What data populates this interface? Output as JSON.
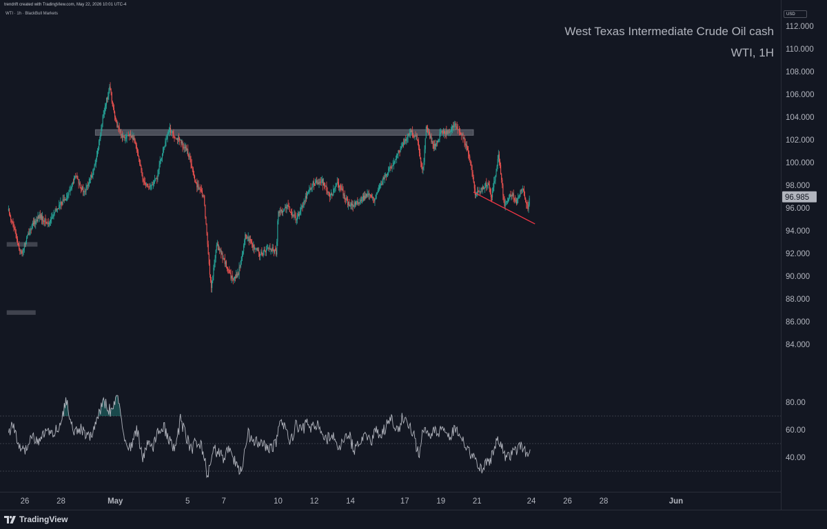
{
  "header": {
    "created_by": "trendrift created with TradingView.com, May 22, 2026 10:01 UTC-4",
    "symbol_line": "WTI · 1h · BlackBull Markets"
  },
  "overlay": {
    "title": "West Texas Intermediate Crude Oil cash",
    "subtitle": "WTI, 1H"
  },
  "price_scale": {
    "currency": "USD",
    "current_price": "96.985",
    "current_price_color": "#b2b5be"
  },
  "footer": {
    "brand": "TradingView",
    "logo_icon": "tradingview-logo-icon"
  },
  "colors": {
    "background": "#131722",
    "up_candle": "#26a69a",
    "down_candle": "#ef5350",
    "trendline": "#f23645",
    "zone": "#787b86",
    "rsi_line": "#b2b5be"
  },
  "chart_data": [
    {
      "type": "candlestick",
      "title": "",
      "y_ticks": [
        "84.000",
        "86.000",
        "88.000",
        "90.000",
        "92.000",
        "94.000",
        "96.000",
        "98.000",
        "100.000",
        "102.000",
        "104.000",
        "106.000",
        "108.000",
        "110.000",
        "112.000"
      ],
      "ylim": [
        82.3,
        113.4
      ],
      "x_ticks": [
        {
          "label": "26",
          "day": 26
        },
        {
          "label": "28",
          "day": 28
        },
        {
          "label": "May",
          "day": 31
        },
        {
          "label": "5",
          "day": 35
        },
        {
          "label": "7",
          "day": 37
        },
        {
          "label": "10",
          "day": 40
        },
        {
          "label": "12",
          "day": 42
        },
        {
          "label": "14",
          "day": 44
        },
        {
          "label": "17",
          "day": 47
        },
        {
          "label": "19",
          "day": 49
        },
        {
          "label": "21",
          "day": 51
        },
        {
          "label": "24",
          "day": 54
        },
        {
          "label": "26",
          "day": 56
        },
        {
          "label": "28",
          "day": 58
        },
        {
          "label": "Jun",
          "day": 62
        }
      ],
      "x_axis_note": "day = days counted from April 1 (continues past April 30 into May / June)",
      "price_path": [
        {
          "day": 25.1,
          "price": 95.8
        },
        {
          "day": 25.5,
          "price": 93.6
        },
        {
          "day": 25.8,
          "price": 91.9
        },
        {
          "day": 26.3,
          "price": 94.2
        },
        {
          "day": 26.8,
          "price": 95.3
        },
        {
          "day": 27.3,
          "price": 94.6
        },
        {
          "day": 27.8,
          "price": 96.0
        },
        {
          "day": 28.4,
          "price": 97.2
        },
        {
          "day": 28.8,
          "price": 98.8
        },
        {
          "day": 29.3,
          "price": 97.3
        },
        {
          "day": 29.9,
          "price": 99.8
        },
        {
          "day": 30.4,
          "price": 104.8
        },
        {
          "day": 30.7,
          "price": 106.6
        },
        {
          "day": 31.0,
          "price": 103.7
        },
        {
          "day": 31.4,
          "price": 102.3
        },
        {
          "day": 31.9,
          "price": 102.4
        },
        {
          "day": 32.2,
          "price": 101.3
        },
        {
          "day": 32.5,
          "price": 98.6
        },
        {
          "day": 32.9,
          "price": 97.8
        },
        {
          "day": 33.3,
          "price": 98.6
        },
        {
          "day": 33.6,
          "price": 100.9
        },
        {
          "day": 34.0,
          "price": 102.9
        },
        {
          "day": 34.6,
          "price": 101.8
        },
        {
          "day": 35.0,
          "price": 101.0
        },
        {
          "day": 35.4,
          "price": 98.4
        },
        {
          "day": 35.9,
          "price": 96.9
        },
        {
          "day": 36.3,
          "price": 88.8
        },
        {
          "day": 36.6,
          "price": 92.8
        },
        {
          "day": 37.0,
          "price": 91.5
        },
        {
          "day": 37.4,
          "price": 89.8
        },
        {
          "day": 37.8,
          "price": 90.2
        },
        {
          "day": 38.2,
          "price": 93.6
        },
        {
          "day": 38.6,
          "price": 92.7
        },
        {
          "day": 39.0,
          "price": 91.9
        },
        {
          "day": 39.5,
          "price": 92.5
        },
        {
          "day": 39.9,
          "price": 92.1
        },
        {
          "day": 40.0,
          "price": 95.6
        },
        {
          "day": 40.5,
          "price": 96.1
        },
        {
          "day": 41.0,
          "price": 95.0
        },
        {
          "day": 41.5,
          "price": 96.9
        },
        {
          "day": 41.9,
          "price": 98.1
        },
        {
          "day": 42.4,
          "price": 98.4
        },
        {
          "day": 42.9,
          "price": 97.0
        },
        {
          "day": 43.3,
          "price": 98.2
        },
        {
          "day": 43.9,
          "price": 96.3
        },
        {
          "day": 44.4,
          "price": 96.4
        },
        {
          "day": 44.9,
          "price": 97.2
        },
        {
          "day": 45.3,
          "price": 96.7
        },
        {
          "day": 45.8,
          "price": 98.5
        },
        {
          "day": 46.3,
          "price": 99.8
        },
        {
          "day": 46.8,
          "price": 101.4
        },
        {
          "day": 47.3,
          "price": 102.7
        },
        {
          "day": 47.7,
          "price": 102.2
        },
        {
          "day": 48.0,
          "price": 99.0
        },
        {
          "day": 48.2,
          "price": 103.3
        },
        {
          "day": 48.6,
          "price": 101.3
        },
        {
          "day": 49.0,
          "price": 102.6
        },
        {
          "day": 49.4,
          "price": 102.7
        },
        {
          "day": 49.8,
          "price": 103.3
        },
        {
          "day": 50.2,
          "price": 102.3
        },
        {
          "day": 50.6,
          "price": 100.4
        },
        {
          "day": 50.9,
          "price": 97.2
        },
        {
          "day": 51.2,
          "price": 97.5
        },
        {
          "day": 51.6,
          "price": 98.3
        },
        {
          "day": 51.8,
          "price": 96.9
        },
        {
          "day": 52.2,
          "price": 100.7
        },
        {
          "day": 52.5,
          "price": 96.2
        },
        {
          "day": 52.9,
          "price": 97.3
        },
        {
          "day": 53.2,
          "price": 96.5
        },
        {
          "day": 53.5,
          "price": 97.9
        },
        {
          "day": 53.8,
          "price": 95.9
        },
        {
          "day": 53.9,
          "price": 96.985
        }
      ],
      "resistance_zone": {
        "from_day": 29.9,
        "to_day": 50.8,
        "low": 102.4,
        "high": 102.9
      },
      "left_zones": [
        {
          "from_day": 25.0,
          "to_day": 26.7,
          "low": 92.6,
          "high": 93.0
        },
        {
          "from_day": 25.0,
          "to_day": 26.6,
          "low": 86.6,
          "high": 87.0
        }
      ],
      "trendline": [
        {
          "day": 50.8,
          "price": 97.4
        },
        {
          "day": 54.2,
          "price": 94.6
        }
      ]
    },
    {
      "type": "line",
      "name": "",
      "y_ticks": [
        "40.00",
        "60.00",
        "80.00"
      ],
      "ylim": [
        20,
        92
      ],
      "levels": [
        30,
        50,
        70
      ],
      "rsi_path": [
        {
          "day": 25.1,
          "value": 58
        },
        {
          "day": 25.4,
          "value": 64
        },
        {
          "day": 25.7,
          "value": 46
        },
        {
          "day": 26.0,
          "value": 44
        },
        {
          "day": 26.4,
          "value": 55
        },
        {
          "day": 26.8,
          "value": 52
        },
        {
          "day": 27.2,
          "value": 60
        },
        {
          "day": 27.6,
          "value": 57
        },
        {
          "day": 28.0,
          "value": 66
        },
        {
          "day": 28.3,
          "value": 82
        },
        {
          "day": 28.7,
          "value": 58
        },
        {
          "day": 29.1,
          "value": 60
        },
        {
          "day": 29.6,
          "value": 54
        },
        {
          "day": 30.0,
          "value": 70
        },
        {
          "day": 30.4,
          "value": 80
        },
        {
          "day": 30.8,
          "value": 72
        },
        {
          "day": 31.1,
          "value": 85
        },
        {
          "day": 31.3,
          "value": 73
        },
        {
          "day": 31.5,
          "value": 50
        },
        {
          "day": 31.8,
          "value": 46
        },
        {
          "day": 32.2,
          "value": 60
        },
        {
          "day": 32.5,
          "value": 38
        },
        {
          "day": 32.8,
          "value": 52
        },
        {
          "day": 33.1,
          "value": 47
        },
        {
          "day": 33.4,
          "value": 60
        },
        {
          "day": 33.7,
          "value": 62
        },
        {
          "day": 34.0,
          "value": 52
        },
        {
          "day": 34.3,
          "value": 44
        },
        {
          "day": 34.6,
          "value": 67
        },
        {
          "day": 34.9,
          "value": 56
        },
        {
          "day": 35.2,
          "value": 45
        },
        {
          "day": 35.5,
          "value": 52
        },
        {
          "day": 35.8,
          "value": 47
        },
        {
          "day": 36.1,
          "value": 27
        },
        {
          "day": 36.4,
          "value": 46
        },
        {
          "day": 36.7,
          "value": 43
        },
        {
          "day": 37.0,
          "value": 40
        },
        {
          "day": 37.3,
          "value": 47
        },
        {
          "day": 37.7,
          "value": 35
        },
        {
          "day": 38.0,
          "value": 28
        },
        {
          "day": 38.3,
          "value": 58
        },
        {
          "day": 38.6,
          "value": 52
        },
        {
          "day": 38.9,
          "value": 51
        },
        {
          "day": 39.3,
          "value": 48
        },
        {
          "day": 39.6,
          "value": 46
        },
        {
          "day": 39.9,
          "value": 50
        },
        {
          "day": 40.1,
          "value": 68
        },
        {
          "day": 40.4,
          "value": 60
        },
        {
          "day": 40.7,
          "value": 52
        },
        {
          "day": 41.0,
          "value": 64
        },
        {
          "day": 41.3,
          "value": 58
        },
        {
          "day": 41.6,
          "value": 66
        },
        {
          "day": 41.9,
          "value": 61
        },
        {
          "day": 42.2,
          "value": 66
        },
        {
          "day": 42.6,
          "value": 52
        },
        {
          "day": 43.0,
          "value": 58
        },
        {
          "day": 43.3,
          "value": 47
        },
        {
          "day": 43.6,
          "value": 53
        },
        {
          "day": 43.9,
          "value": 58
        },
        {
          "day": 44.2,
          "value": 44
        },
        {
          "day": 44.5,
          "value": 52
        },
        {
          "day": 44.8,
          "value": 58
        },
        {
          "day": 45.1,
          "value": 50
        },
        {
          "day": 45.4,
          "value": 62
        },
        {
          "day": 45.7,
          "value": 55
        },
        {
          "day": 46.0,
          "value": 64
        },
        {
          "day": 46.3,
          "value": 69
        },
        {
          "day": 46.6,
          "value": 58
        },
        {
          "day": 46.9,
          "value": 70
        },
        {
          "day": 47.2,
          "value": 64
        },
        {
          "day": 47.5,
          "value": 56
        },
        {
          "day": 47.8,
          "value": 40
        },
        {
          "day": 48.0,
          "value": 62
        },
        {
          "day": 48.3,
          "value": 56
        },
        {
          "day": 48.6,
          "value": 60
        },
        {
          "day": 48.9,
          "value": 58
        },
        {
          "day": 49.2,
          "value": 62
        },
        {
          "day": 49.5,
          "value": 56
        },
        {
          "day": 49.8,
          "value": 60
        },
        {
          "day": 50.1,
          "value": 54
        },
        {
          "day": 50.4,
          "value": 48
        },
        {
          "day": 50.7,
          "value": 42
        },
        {
          "day": 50.9,
          "value": 38
        },
        {
          "day": 51.1,
          "value": 30
        },
        {
          "day": 51.4,
          "value": 35
        },
        {
          "day": 51.7,
          "value": 37
        },
        {
          "day": 51.9,
          "value": 43
        },
        {
          "day": 52.1,
          "value": 52
        },
        {
          "day": 52.4,
          "value": 49
        },
        {
          "day": 52.6,
          "value": 38
        },
        {
          "day": 52.8,
          "value": 41
        },
        {
          "day": 53.1,
          "value": 44
        },
        {
          "day": 53.4,
          "value": 49
        },
        {
          "day": 53.6,
          "value": 45
        },
        {
          "day": 53.8,
          "value": 40
        },
        {
          "day": 53.95,
          "value": 48
        }
      ]
    }
  ]
}
